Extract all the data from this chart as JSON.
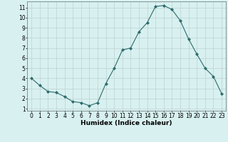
{
  "xlabel": "Humidex (Indice chaleur)",
  "ylabel": "",
  "x": [
    0,
    1,
    2,
    3,
    4,
    5,
    6,
    7,
    8,
    9,
    10,
    11,
    12,
    13,
    14,
    15,
    16,
    17,
    18,
    19,
    20,
    21,
    22,
    23
  ],
  "y": [
    4.0,
    3.3,
    2.7,
    2.6,
    2.2,
    1.7,
    1.6,
    1.3,
    1.6,
    3.5,
    5.0,
    6.8,
    7.0,
    8.6,
    9.5,
    11.1,
    11.2,
    10.8,
    9.7,
    7.9,
    6.4,
    5.0,
    4.2,
    2.5
  ],
  "line_color": "#2d6b6b",
  "marker": "D",
  "marker_size": 2.0,
  "bg_color": "#d8f0f0",
  "grid_color": "#b8cccc",
  "spine_color": "#607070",
  "xlim": [
    -0.5,
    23.5
  ],
  "ylim": [
    0.8,
    11.6
  ],
  "yticks": [
    1,
    2,
    3,
    4,
    5,
    6,
    7,
    8,
    9,
    10,
    11
  ],
  "xticks": [
    0,
    1,
    2,
    3,
    4,
    5,
    6,
    7,
    8,
    9,
    10,
    11,
    12,
    13,
    14,
    15,
    16,
    17,
    18,
    19,
    20,
    21,
    22,
    23
  ],
  "label_fontsize": 6.5,
  "tick_fontsize": 5.5
}
